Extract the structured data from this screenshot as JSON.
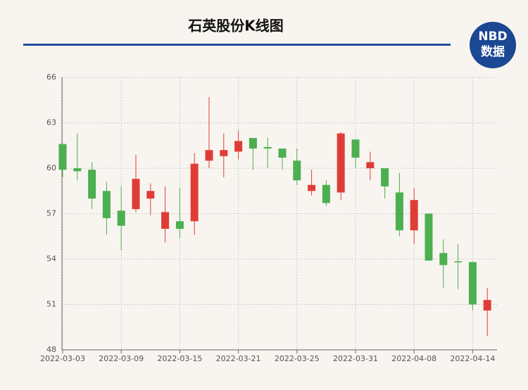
{
  "logo": {
    "line1": "NBD",
    "line2": "数据"
  },
  "chart_data": {
    "type": "candlestick",
    "title": "石英股份K线图",
    "categories": [
      "2022-03-03",
      null,
      null,
      null,
      "2022-03-09",
      null,
      null,
      null,
      "2022-03-15",
      null,
      null,
      null,
      "2022-03-21",
      null,
      null,
      null,
      "2022-03-25",
      null,
      null,
      null,
      "2022-03-31",
      null,
      null,
      null,
      "2022-04-08",
      null,
      null,
      null,
      "2022-04-14",
      null
    ],
    "open": [
      61.6,
      60.0,
      59.9,
      58.5,
      57.2,
      57.3,
      58.0,
      56.0,
      56.5,
      56.5,
      60.5,
      60.8,
      61.1,
      62.0,
      61.4,
      61.3,
      60.5,
      58.5,
      58.9,
      58.4,
      61.9,
      60.0,
      60.0,
      58.4,
      55.9,
      57.0,
      54.4,
      53.85,
      53.8,
      50.6
    ],
    "close": [
      59.9,
      59.8,
      58.0,
      56.7,
      56.2,
      59.3,
      58.5,
      57.1,
      56.0,
      60.3,
      61.2,
      61.2,
      61.8,
      61.3,
      61.3,
      60.7,
      59.2,
      58.9,
      57.7,
      62.3,
      60.7,
      60.4,
      58.8,
      55.9,
      57.9,
      53.9,
      53.6,
      53.8,
      51.0,
      51.3
    ],
    "high": [
      61.6,
      62.3,
      60.4,
      59.1,
      58.8,
      60.9,
      59.0,
      58.8,
      58.7,
      61.0,
      64.7,
      62.3,
      62.5,
      62.0,
      62.0,
      61.3,
      61.3,
      59.9,
      59.2,
      62.4,
      61.9,
      61.1,
      60.0,
      59.7,
      58.7,
      57.0,
      55.3,
      55.0,
      53.8,
      52.1
    ],
    "low": [
      59.4,
      59.2,
      57.3,
      55.6,
      54.6,
      57.1,
      56.9,
      55.1,
      55.4,
      55.6,
      60.0,
      59.4,
      60.6,
      59.9,
      60.0,
      59.9,
      58.9,
      58.2,
      57.5,
      57.9,
      60.0,
      59.2,
      58.0,
      55.5,
      55.0,
      53.9,
      52.1,
      52.0,
      50.6,
      48.9
    ],
    "up_color": "#e03c36",
    "down_color": "#4caf50",
    "ylim": [
      48,
      66
    ],
    "yticks": [
      48,
      51,
      54,
      57,
      60,
      63,
      66
    ],
    "grid": true
  }
}
